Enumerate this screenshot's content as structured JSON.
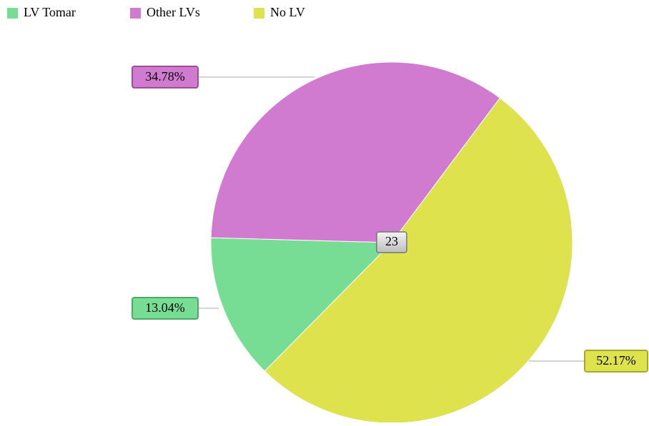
{
  "chart_data": {
    "type": "pie",
    "series": [
      {
        "name": "LV Tomar",
        "color": "#77dd95",
        "border": "#4fa86a",
        "values": [
          13.04
        ],
        "value_labels": [
          "13.04%"
        ]
      },
      {
        "name": "Other LVs",
        "color": "#d07bcf",
        "border": "#9a4f99",
        "values": [
          34.78
        ],
        "value_labels": [
          "34.78%"
        ]
      },
      {
        "name": "No LV",
        "color": "#dde24d",
        "border": "#a5a82c",
        "values": [
          52.17
        ],
        "value_labels": [
          "52.17%"
        ]
      }
    ],
    "total": 23
  }
}
